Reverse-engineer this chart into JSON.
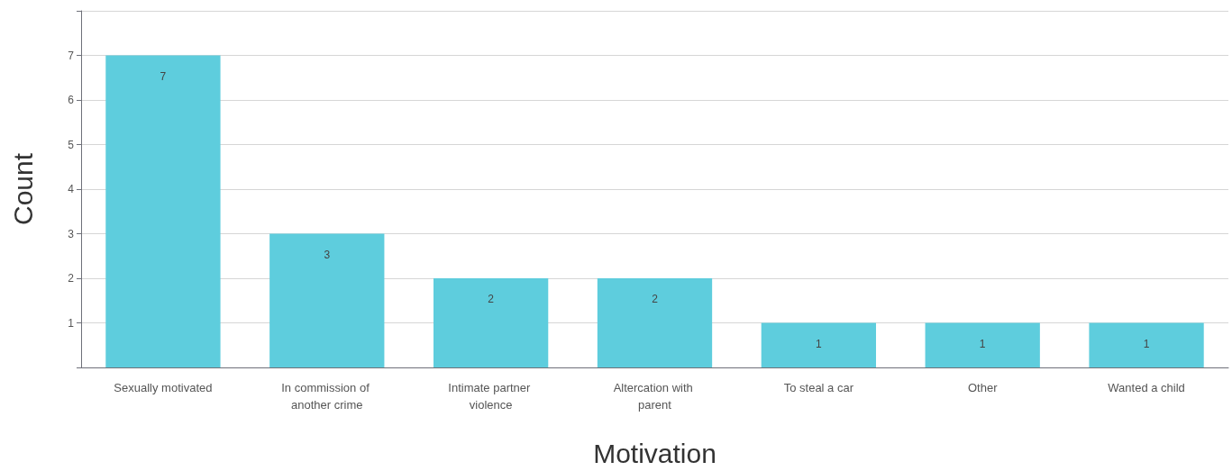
{
  "chart_data": {
    "type": "bar",
    "xlabel": "Motivation",
    "ylabel": "Count",
    "categories": [
      "Sexually motivated",
      "In commission of another crime",
      "Intimate partner violence",
      "Altercation with parent",
      "To steal a car",
      "Other",
      "Wanted a child"
    ],
    "values": [
      7,
      3,
      2,
      2,
      1,
      1,
      1
    ],
    "color": "#5ecddd",
    "ylim": [
      0,
      8
    ],
    "yticks": [
      {
        "value": 0,
        "label": null
      },
      1,
      2,
      3,
      4,
      5,
      6,
      7,
      {
        "value": 8,
        "label": null
      }
    ],
    "grid": "y",
    "data_labels": true
  }
}
